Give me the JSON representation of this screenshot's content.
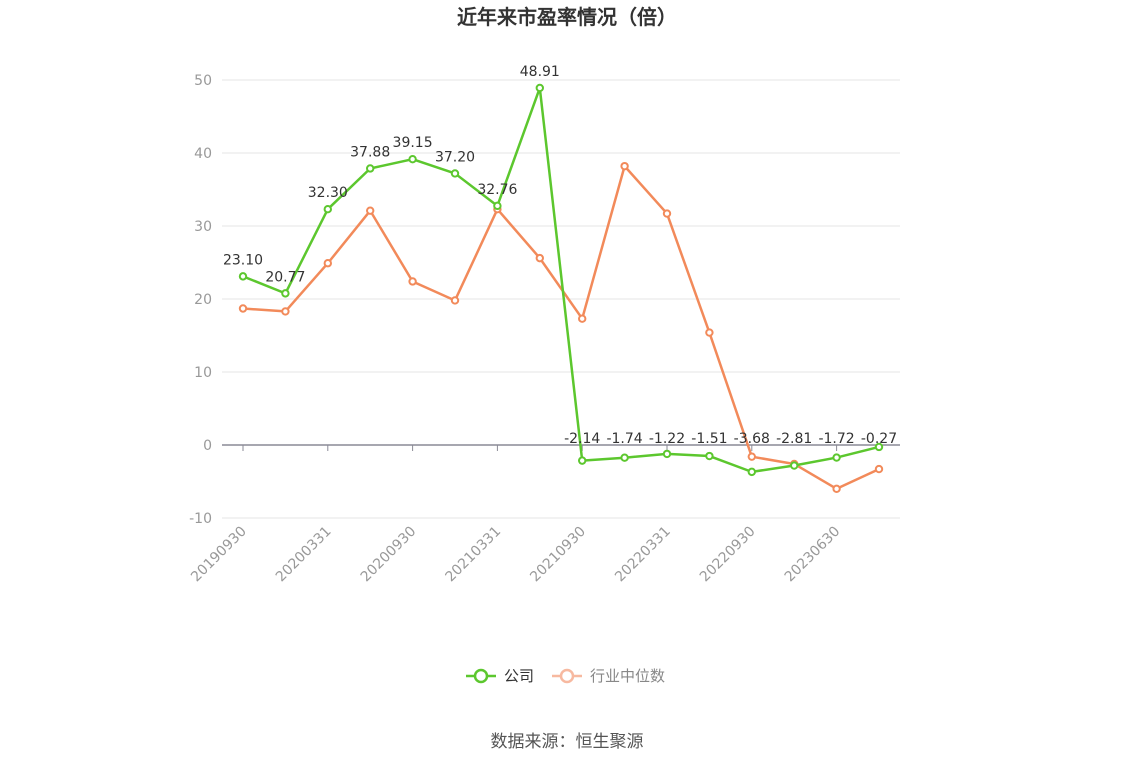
{
  "chart_data": {
    "type": "line",
    "title": "近年来市盈率情况（倍）",
    "source": "数据来源：恒生聚源",
    "x_tick_labels": [
      "20190930",
      "20200331",
      "20200930",
      "20210331",
      "20210930",
      "20220331",
      "20220930",
      "20230630"
    ],
    "y_ticks": [
      50,
      40,
      30,
      20,
      10,
      0,
      -10
    ],
    "ylim": [
      -10,
      50
    ],
    "grid": true,
    "legend_position": "bottom-center",
    "series": [
      {
        "name": "公司",
        "color": "#5cc72e",
        "values": [
          23.1,
          20.77,
          32.3,
          37.88,
          39.15,
          37.2,
          32.76,
          48.91,
          -2.14,
          -1.74,
          -1.22,
          -1.51,
          -3.68,
          -2.81,
          -1.72,
          -0.27
        ],
        "labels": [
          "23.10",
          "20.77",
          "32.30",
          "37.88",
          "39.15",
          "37.20",
          "32.76",
          "48.91",
          "-2.14",
          "-1.74",
          "-1.22",
          "-1.51",
          "-3.68",
          "-2.81",
          "-1.72",
          "-0.27"
        ]
      },
      {
        "name": "行业中位数",
        "color": "#f28a5a",
        "legend_color": "#f7b9a0",
        "values": [
          18.7,
          18.3,
          24.9,
          32.1,
          22.4,
          19.8,
          32.3,
          25.6,
          17.3,
          38.2,
          31.7,
          15.4,
          -1.6,
          -2.6,
          -6.0,
          -3.3
        ]
      }
    ]
  }
}
